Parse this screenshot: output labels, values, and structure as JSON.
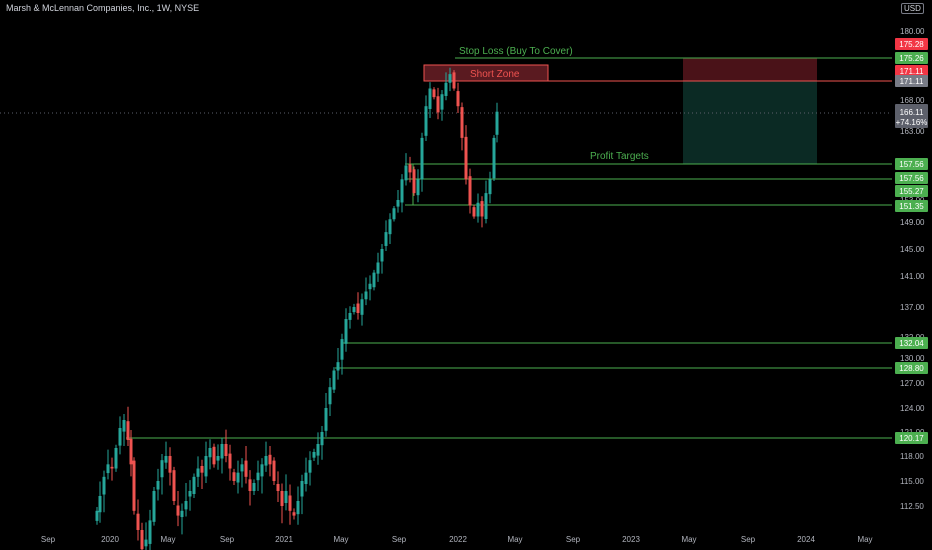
{
  "header": {
    "title": "Marsh & McLennan Companies, Inc., 1W, NYSE",
    "currency": "USD"
  },
  "chart_data": {
    "type": "candlestick",
    "timeframe": "1W",
    "x_ticks": [
      "Sep",
      "2020",
      "May",
      "Sep",
      "2021",
      "May",
      "Sep",
      "2022",
      "May",
      "Sep",
      "2023",
      "May",
      "Sep",
      "2024",
      "May"
    ],
    "y_ticks": [
      112.5,
      115.0,
      118.0,
      121.0,
      124.0,
      127.0,
      130.0,
      132.0,
      137.0,
      141.0,
      145.0,
      149.0,
      153.0,
      163.0,
      168.0,
      180.0
    ],
    "ylim": [
      111,
      184
    ],
    "current_price": 166.11,
    "current_change": "+74.16%",
    "price_tags": [
      {
        "value": "175.28",
        "color": "#f23645"
      },
      {
        "value": "175.26",
        "color": "#4caf50"
      },
      {
        "value": "171.11",
        "color": "#f23645"
      },
      {
        "value": "171.11",
        "color": "#787b86"
      },
      {
        "value": "157.56",
        "color": "#4caf50"
      },
      {
        "value": "157.56",
        "color": "#4caf50"
      },
      {
        "value": "155.27",
        "color": "#4caf50"
      },
      {
        "value": "151.35",
        "color": "#4caf50"
      },
      {
        "value": "132.04",
        "color": "#4caf50"
      },
      {
        "value": "128.80",
        "color": "#4caf50"
      },
      {
        "value": "120.17",
        "color": "#4caf50"
      }
    ],
    "annotations": {
      "stop_loss": "Stop Loss (Buy To Cover)",
      "short_zone": "Short Zone",
      "profit_targets": "Profit Targets"
    },
    "colors": {
      "up": "#26a69a",
      "down": "#ef5350",
      "level": "#4caf50"
    }
  }
}
